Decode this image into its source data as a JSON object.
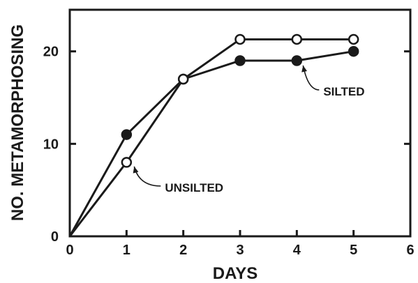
{
  "chart_data": {
    "type": "line",
    "xlabel": "DAYS",
    "ylabel": "NO. METAMORPHOSING",
    "xlim": [
      0,
      6
    ],
    "ylim": [
      0,
      24.5
    ],
    "xticks": [
      0,
      1,
      2,
      3,
      4,
      5,
      6
    ],
    "xtick_labels": [
      "0",
      "1",
      "2",
      "3",
      "4",
      "5",
      "6"
    ],
    "yticks": [
      0,
      10,
      20
    ],
    "ytick_labels": [
      "0",
      "10",
      "20"
    ],
    "grid": false,
    "legend": "none",
    "series": [
      {
        "name": "SILTED",
        "marker": "filled-circle",
        "x": [
          0,
          1,
          2,
          3,
          4,
          5
        ],
        "y": [
          0,
          11,
          17,
          19,
          19,
          20
        ]
      },
      {
        "name": "UNSILTED",
        "marker": "open-circle",
        "x": [
          0,
          1,
          2,
          3,
          4,
          5
        ],
        "y": [
          0,
          8,
          17,
          21.3,
          21.3,
          21.3
        ]
      }
    ],
    "annotations": [
      {
        "text": "SILTED",
        "series": "SILTED",
        "point_index": 4
      },
      {
        "text": "UNSILTED",
        "series": "UNSILTED",
        "point_index": 1
      }
    ]
  }
}
